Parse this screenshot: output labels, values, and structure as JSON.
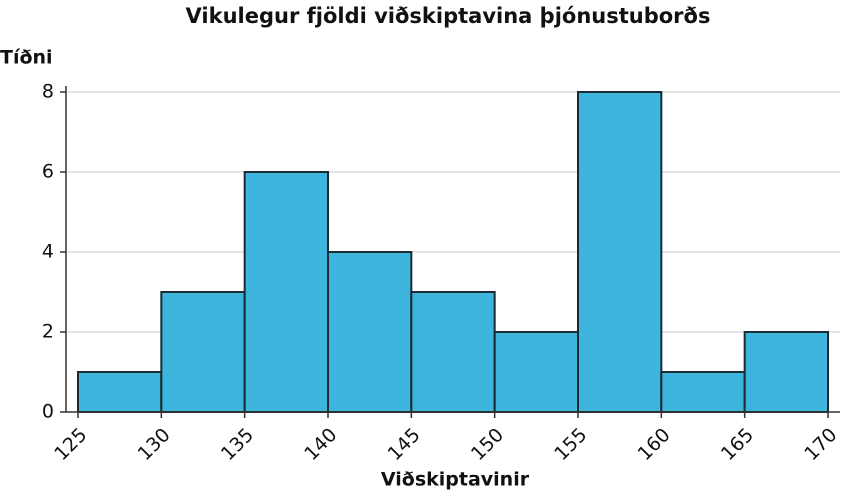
{
  "chart_data": {
    "type": "histogram",
    "title": "Vikulegur fjöldi viðskiptavina þjónustuborðs",
    "x_label": "Viðskiptavinir",
    "y_label": "Tíðni",
    "bins": [
      125,
      130,
      135,
      140,
      145,
      150,
      155,
      160,
      165,
      170
    ],
    "values": [
      1,
      3,
      6,
      4,
      3,
      2,
      8,
      1,
      2
    ],
    "color": "#3db5dc",
    "xlim": [
      125,
      170
    ],
    "xticks": [
      125,
      130,
      135,
      140,
      145,
      150,
      155,
      160,
      165,
      170
    ],
    "ylim": [
      0,
      8
    ],
    "yticks": [
      0,
      2,
      4,
      6,
      8
    ],
    "grid": true
  }
}
